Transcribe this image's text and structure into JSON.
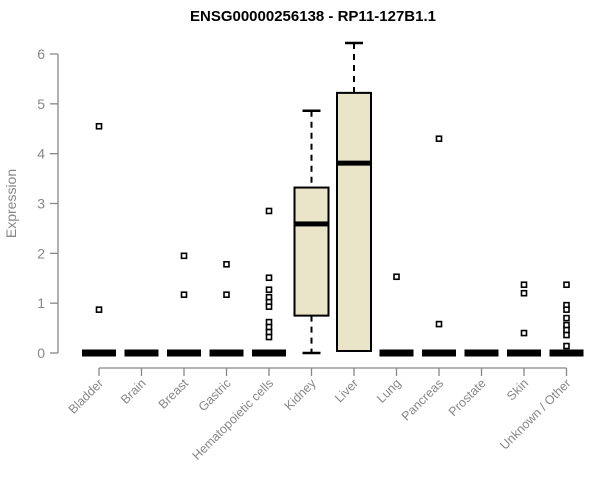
{
  "page": {
    "background": "#ffffff"
  },
  "chart_data": {
    "type": "boxplot",
    "title": "ENSG00000256138 - RP11-127B1.1",
    "ylabel": "Expression",
    "ylim": [
      0,
      6
    ],
    "yticks": [
      0,
      1,
      2,
      3,
      4,
      5,
      6
    ],
    "grid": false,
    "legend": false,
    "categories": [
      "Bladder",
      "Brain",
      "Breast",
      "Gastric",
      "Hematopoietic cells",
      "Kidney",
      "Liver",
      "Lung",
      "Pancreas",
      "Prostate",
      "Skin",
      "Unknown / Other"
    ],
    "series": [
      {
        "category": "Bladder",
        "min": 0,
        "q1": 0,
        "median": 0,
        "q3": 0,
        "max": 0,
        "outliers": [
          4.55,
          0.87
        ]
      },
      {
        "category": "Brain",
        "min": 0,
        "q1": 0,
        "median": 0,
        "q3": 0,
        "max": 0,
        "outliers": []
      },
      {
        "category": "Breast",
        "min": 0,
        "q1": 0,
        "median": 0,
        "q3": 0,
        "max": 0,
        "outliers": [
          1.95,
          1.17
        ]
      },
      {
        "category": "Gastric",
        "min": 0,
        "q1": 0,
        "median": 0,
        "q3": 0,
        "max": 0,
        "outliers": [
          1.78,
          1.17
        ]
      },
      {
        "category": "Hematopoietic cells",
        "min": 0,
        "q1": 0,
        "median": 0,
        "q3": 0,
        "max": 0,
        "outliers": [
          2.85,
          1.51,
          1.27,
          1.12,
          1.02,
          0.93,
          0.62,
          0.52,
          0.42,
          0.32
        ]
      },
      {
        "category": "Kidney",
        "min": 0,
        "q1": 0.75,
        "median": 2.59,
        "q3": 3.32,
        "max": 4.86,
        "outliers": []
      },
      {
        "category": "Liver",
        "min": 0.04,
        "q1": 0.04,
        "median": 3.81,
        "q3": 5.22,
        "max": 6.22,
        "outliers": []
      },
      {
        "category": "Lung",
        "min": 0,
        "q1": 0,
        "median": 0,
        "q3": 0,
        "max": 0,
        "outliers": [
          1.53
        ]
      },
      {
        "category": "Pancreas",
        "min": 0,
        "q1": 0,
        "median": 0,
        "q3": 0,
        "max": 0,
        "outliers": [
          4.3,
          0.58
        ]
      },
      {
        "category": "Prostate",
        "min": 0,
        "q1": 0,
        "median": 0,
        "q3": 0,
        "max": 0,
        "outliers": []
      },
      {
        "category": "Skin",
        "min": 0,
        "q1": 0,
        "median": 0,
        "q3": 0,
        "max": 0,
        "outliers": [
          1.37,
          1.2,
          0.4
        ]
      },
      {
        "category": "Unknown / Other",
        "min": 0,
        "q1": 0,
        "median": 0,
        "q3": 0,
        "max": 0,
        "outliers": [
          1.37,
          0.96,
          0.87,
          0.7,
          0.56,
          0.46,
          0.36,
          0.14
        ]
      }
    ],
    "colors": {
      "box_fill": "#EAE4C9",
      "box_stroke": "#000000",
      "median": "#000000",
      "axis": "#878787",
      "tick_label": "#878787",
      "title": "#000000",
      "outlier_fill": "#ffffff"
    }
  }
}
